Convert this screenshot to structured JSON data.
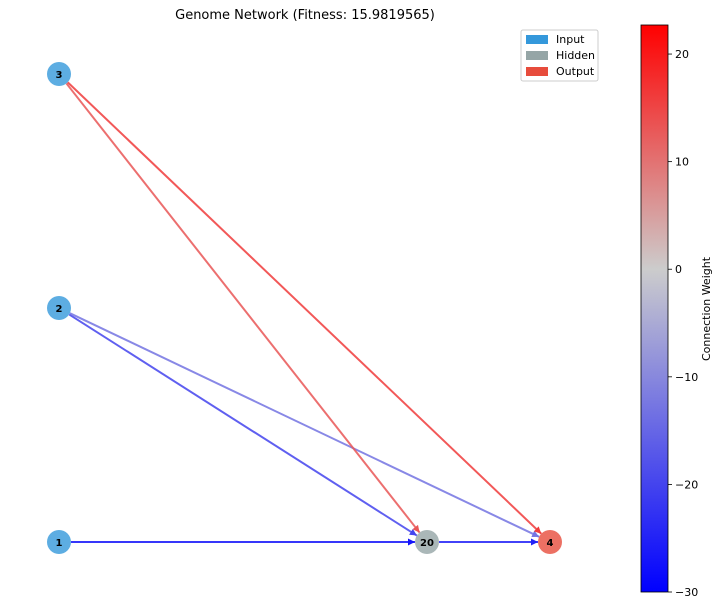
{
  "title": "Genome Network (Fitness: 15.9819565)",
  "legend": [
    {
      "label": "Input",
      "color": "#3498db"
    },
    {
      "label": "Hidden",
      "color": "#95a5a6"
    },
    {
      "label": "Output",
      "color": "#e74c3c"
    }
  ],
  "nodes": [
    {
      "id": "3",
      "type": "input"
    },
    {
      "id": "2",
      "type": "input"
    },
    {
      "id": "1",
      "type": "input"
    },
    {
      "id": "20",
      "type": "hidden"
    },
    {
      "id": "4",
      "type": "output"
    }
  ],
  "edges": [
    {
      "from": "1",
      "to": "20",
      "weight": -27
    },
    {
      "from": "20",
      "to": "4",
      "weight": -25
    },
    {
      "from": "2",
      "to": "20",
      "weight": -20
    },
    {
      "from": "2",
      "to": "4",
      "weight": -13
    },
    {
      "from": "3",
      "to": "20",
      "weight": 13
    },
    {
      "from": "3",
      "to": "4",
      "weight": 16
    }
  ],
  "colorbar": {
    "label": "Connection Weight",
    "min": -30,
    "max": 22.7,
    "ticks": [
      "20",
      "10",
      "0",
      "−10",
      "−20",
      "−30"
    ],
    "colors": {
      "low": "#0000ff",
      "mid": "#cccccc",
      "high": "#ff0000"
    }
  }
}
